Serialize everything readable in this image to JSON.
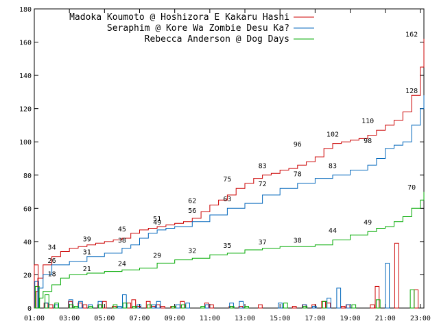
{
  "chart_data": {
    "type": "line",
    "title": "",
    "xlabel": "",
    "ylabel": "",
    "ylim": [
      0,
      180
    ],
    "yticks": [
      0,
      20,
      40,
      60,
      80,
      100,
      120,
      140,
      160,
      180
    ],
    "xlim": [
      "01:00",
      "23:00"
    ],
    "xticks": [
      "01:00",
      "03:00",
      "05:00",
      "07:00",
      "09:00",
      "11:00",
      "13:00",
      "15:00",
      "17:00",
      "19:00",
      "21:00",
      "23:00"
    ],
    "grid": false,
    "legend_position": "top-right",
    "series": [
      {
        "name": "Madoka Koumoto @ Hoshizora E Kakaru Hashi",
        "color": "#cc0000",
        "cumulative": [
          [
            1.0,
            0
          ],
          [
            1.1,
            10
          ],
          [
            1.2,
            18
          ],
          [
            1.5,
            26
          ],
          [
            2.0,
            31
          ],
          [
            2.5,
            34
          ],
          [
            3.0,
            36
          ],
          [
            3.5,
            37
          ],
          [
            4.0,
            38
          ],
          [
            4.5,
            39
          ],
          [
            5.0,
            40
          ],
          [
            5.5,
            41
          ],
          [
            6.0,
            42
          ],
          [
            6.5,
            45
          ],
          [
            7.0,
            47
          ],
          [
            7.5,
            48
          ],
          [
            8.0,
            49
          ],
          [
            8.5,
            50
          ],
          [
            9.0,
            51
          ],
          [
            9.5,
            52
          ],
          [
            10.0,
            54
          ],
          [
            10.5,
            58
          ],
          [
            11.0,
            62
          ],
          [
            11.5,
            65
          ],
          [
            12.0,
            68
          ],
          [
            12.5,
            72
          ],
          [
            13.0,
            75
          ],
          [
            13.5,
            78
          ],
          [
            14.0,
            80
          ],
          [
            14.5,
            81
          ],
          [
            15.0,
            83
          ],
          [
            15.5,
            84
          ],
          [
            16.0,
            86
          ],
          [
            16.5,
            88
          ],
          [
            17.0,
            91
          ],
          [
            17.5,
            96
          ],
          [
            18.0,
            99
          ],
          [
            18.5,
            100
          ],
          [
            19.0,
            101
          ],
          [
            19.5,
            102
          ],
          [
            20.0,
            104
          ],
          [
            20.5,
            107
          ],
          [
            21.0,
            110
          ],
          [
            21.5,
            113
          ],
          [
            22.0,
            118
          ],
          [
            22.5,
            128
          ],
          [
            23.0,
            145
          ],
          [
            23.2,
            162
          ]
        ],
        "labels": [
          [
            2.0,
            34
          ],
          [
            4.0,
            39
          ],
          [
            6.0,
            45
          ],
          [
            8.0,
            51
          ],
          [
            10.0,
            62
          ],
          [
            12.0,
            75
          ],
          [
            14.0,
            83
          ],
          [
            16.0,
            96
          ],
          [
            18.0,
            102
          ],
          [
            20.0,
            110
          ],
          [
            22.5,
            162
          ]
        ],
        "hourly": [
          26,
          0,
          3,
          2,
          0,
          0,
          0,
          4,
          0,
          3,
          2,
          0,
          0,
          2,
          4,
          0,
          1,
          0,
          0,
          3,
          5,
          1,
          0,
          4,
          1,
          2,
          1,
          0,
          1,
          0,
          4,
          0,
          0,
          0,
          0,
          3,
          2,
          0,
          0,
          0,
          1,
          0,
          1,
          0,
          0,
          0,
          2,
          0,
          0,
          0,
          0,
          0,
          0,
          1,
          0,
          2,
          0,
          2,
          0,
          4,
          3,
          0,
          0,
          1,
          2,
          0,
          0,
          0,
          0,
          2,
          13,
          0,
          0,
          0,
          39,
          0,
          0,
          0,
          11,
          0
        ]
      },
      {
        "name": "Seraphim @ Kore Wa Zombie Desu Ka?",
        "color": "#0066bb",
        "cumulative": [
          [
            1.0,
            0
          ],
          [
            1.2,
            12
          ],
          [
            1.5,
            20
          ],
          [
            2.0,
            26
          ],
          [
            3.0,
            28
          ],
          [
            4.0,
            31
          ],
          [
            5.0,
            33
          ],
          [
            6.0,
            36
          ],
          [
            6.5,
            38
          ],
          [
            7.0,
            42
          ],
          [
            7.5,
            45
          ],
          [
            8.0,
            47
          ],
          [
            8.5,
            48
          ],
          [
            9.0,
            49
          ],
          [
            10.0,
            52
          ],
          [
            11.0,
            56
          ],
          [
            12.0,
            60
          ],
          [
            13.0,
            63
          ],
          [
            14.0,
            68
          ],
          [
            15.0,
            72
          ],
          [
            16.0,
            75
          ],
          [
            17.0,
            78
          ],
          [
            18.0,
            80
          ],
          [
            19.0,
            83
          ],
          [
            20.0,
            86
          ],
          [
            20.5,
            90
          ],
          [
            21.0,
            96
          ],
          [
            21.5,
            98
          ],
          [
            22.0,
            100
          ],
          [
            22.5,
            110
          ],
          [
            23.0,
            120
          ],
          [
            23.2,
            128
          ]
        ],
        "labels": [
          [
            2.0,
            26
          ],
          [
            4.0,
            31
          ],
          [
            6.0,
            38
          ],
          [
            8.0,
            49
          ],
          [
            10.0,
            56
          ],
          [
            12.0,
            63
          ],
          [
            14.0,
            72
          ],
          [
            16.0,
            78
          ],
          [
            18.0,
            83
          ],
          [
            20.0,
            98
          ],
          [
            22.5,
            128
          ]
        ],
        "hourly": [
          16,
          0,
          3,
          0,
          2,
          0,
          0,
          5,
          0,
          4,
          0,
          2,
          0,
          4,
          0,
          0,
          0,
          1,
          8,
          0,
          0,
          2,
          0,
          0,
          2,
          4,
          0,
          0,
          0,
          2,
          0,
          3,
          0,
          0,
          0,
          2,
          0,
          0,
          0,
          0,
          3,
          0,
          4,
          0,
          0,
          0,
          0,
          0,
          0,
          0,
          3,
          0,
          0,
          0,
          0,
          2,
          0,
          1,
          0,
          0,
          6,
          0,
          12,
          0,
          2,
          0,
          0,
          0,
          0,
          0,
          0,
          0,
          27,
          0,
          0,
          0,
          0,
          0,
          0,
          0
        ]
      },
      {
        "name": "Rebecca Anderson @ Dog Days",
        "color": "#00aa00",
        "cumulative": [
          [
            1.0,
            0
          ],
          [
            1.3,
            6
          ],
          [
            1.5,
            10
          ],
          [
            2.0,
            14
          ],
          [
            2.5,
            18
          ],
          [
            3.0,
            20
          ],
          [
            4.0,
            21
          ],
          [
            5.0,
            22
          ],
          [
            6.0,
            23
          ],
          [
            7.0,
            24
          ],
          [
            8.0,
            27
          ],
          [
            9.0,
            29
          ],
          [
            10.0,
            30
          ],
          [
            11.0,
            32
          ],
          [
            12.0,
            33
          ],
          [
            13.0,
            35
          ],
          [
            14.0,
            36
          ],
          [
            15.0,
            37
          ],
          [
            16.0,
            37
          ],
          [
            17.0,
            38
          ],
          [
            18.0,
            41
          ],
          [
            19.0,
            44
          ],
          [
            20.0,
            46
          ],
          [
            20.5,
            48
          ],
          [
            21.0,
            49
          ],
          [
            21.5,
            52
          ],
          [
            22.0,
            55
          ],
          [
            22.5,
            60
          ],
          [
            23.0,
            65
          ],
          [
            23.2,
            70
          ]
        ],
        "labels": [
          [
            2.0,
            18
          ],
          [
            4.0,
            21
          ],
          [
            6.0,
            24
          ],
          [
            8.0,
            29
          ],
          [
            10.0,
            32
          ],
          [
            12.0,
            35
          ],
          [
            14.0,
            37
          ],
          [
            16.0,
            38
          ],
          [
            18.0,
            44
          ],
          [
            20.0,
            49
          ],
          [
            22.5,
            70
          ]
        ],
        "hourly": [
          13,
          0,
          8,
          0,
          3,
          0,
          0,
          2,
          1,
          0,
          0,
          1,
          0,
          2,
          0,
          0,
          2,
          0,
          3,
          0,
          1,
          0,
          0,
          2,
          0,
          0,
          0,
          0,
          1,
          0,
          2,
          0,
          0,
          0,
          1,
          0,
          0,
          0,
          0,
          0,
          1,
          0,
          0,
          1,
          0,
          0,
          0,
          0,
          0,
          0,
          0,
          3,
          0,
          0,
          0,
          1,
          0,
          0,
          0,
          4,
          0,
          0,
          0,
          0,
          0,
          2,
          0,
          0,
          0,
          0,
          5,
          0,
          0,
          0,
          0,
          0,
          0,
          11,
          0,
          0
        ]
      }
    ]
  }
}
